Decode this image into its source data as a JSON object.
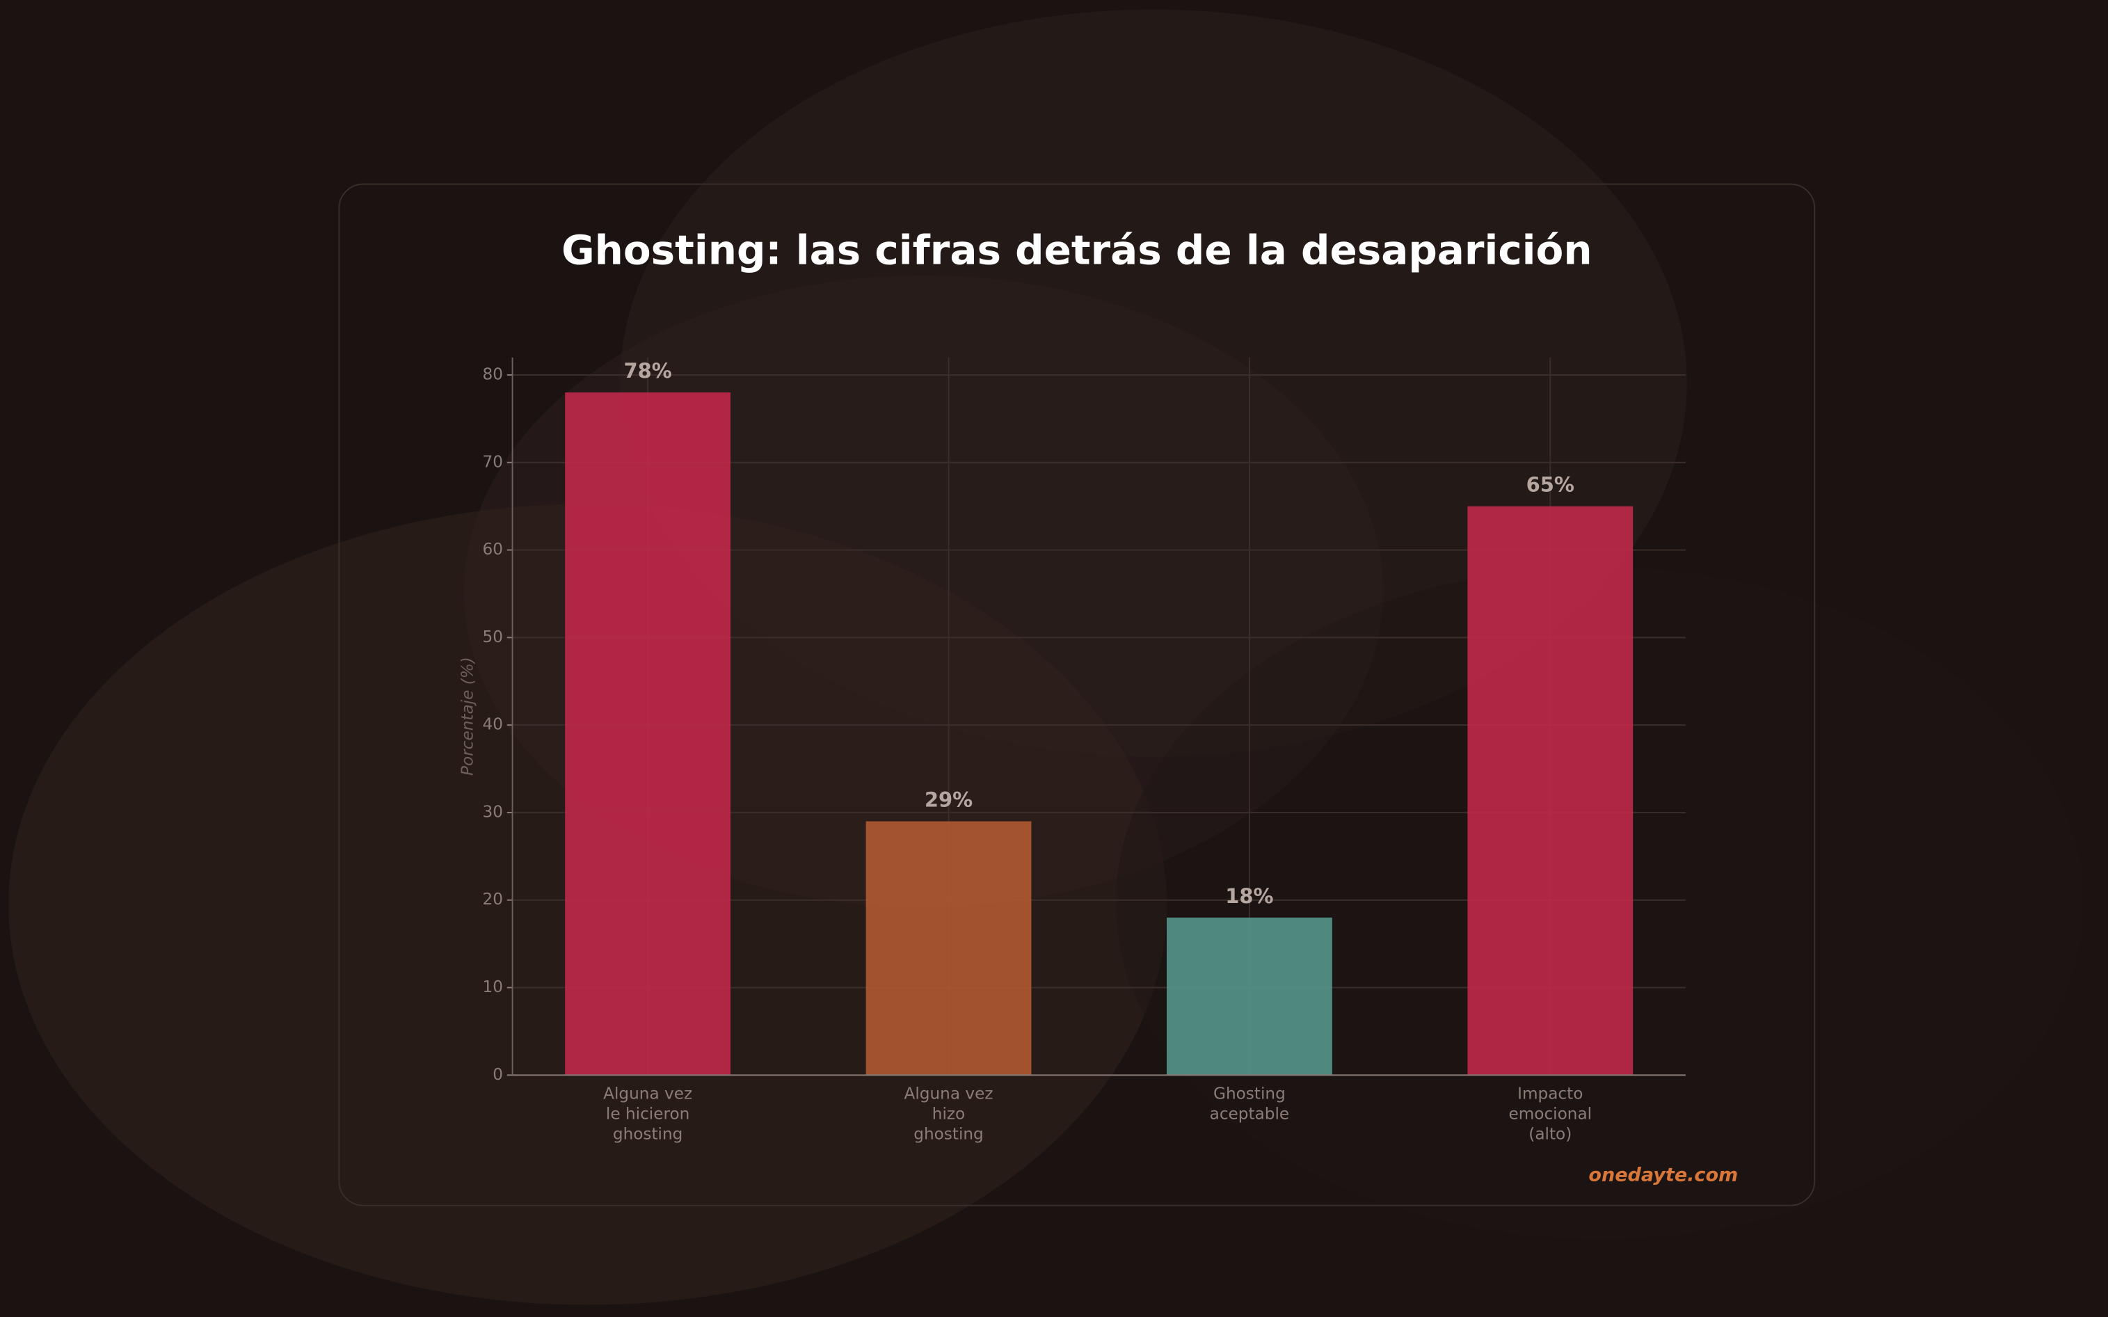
{
  "chart_data": {
    "type": "bar",
    "title": "Ghosting: las cifras detrás de la desaparición",
    "ylabel": "Porcentaje (%)",
    "categories": [
      "Alguna vez\nle hicieron\nghosting",
      "Alguna vez\nhizo\nghosting",
      "Ghosting\naceptable",
      "Impacto\nemocional\n(alto)"
    ],
    "values": [
      78,
      29,
      18,
      65
    ],
    "value_labels": [
      "78%",
      "29%",
      "18%",
      "65%"
    ],
    "colors": [
      "#c0284a",
      "#b05a30",
      "#55968a",
      "#c0284a"
    ],
    "ylim": [
      0,
      82
    ],
    "yticks": [
      0,
      10,
      20,
      30,
      40,
      50,
      60,
      70,
      80
    ],
    "grid": true,
    "watermark": "onedayte.com"
  }
}
